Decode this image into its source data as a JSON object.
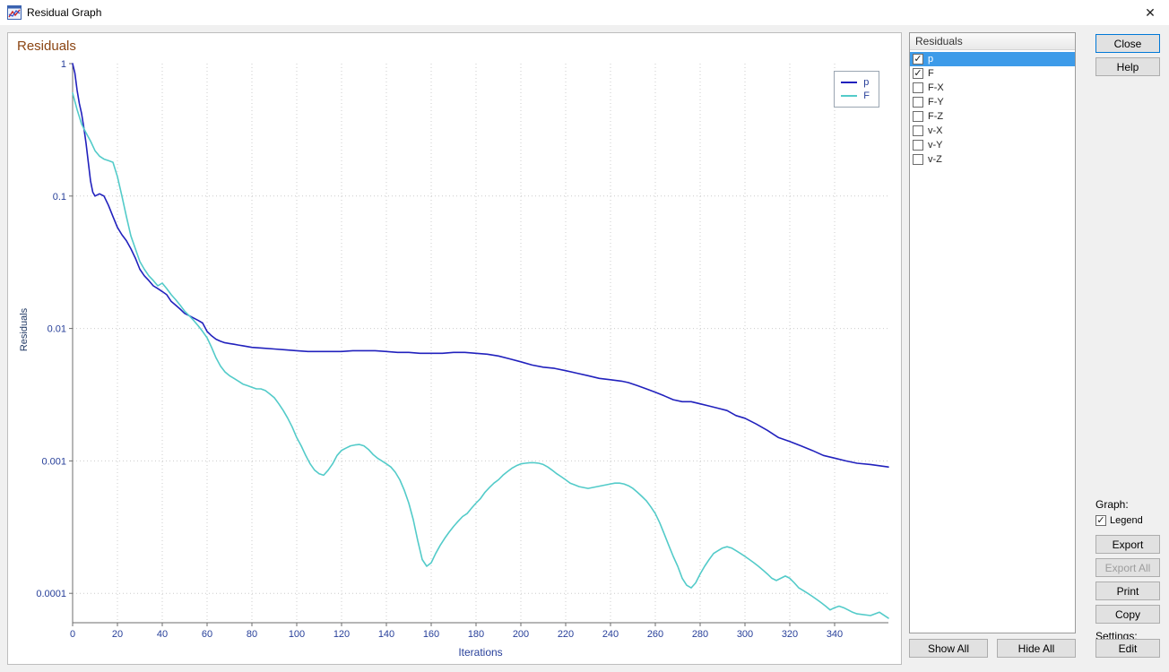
{
  "window": {
    "title": "Residual Graph",
    "close_label": "✕"
  },
  "colors": {
    "series_p": "#2121bd",
    "series_f": "#53cbc9",
    "selection": "#3d9be9",
    "plot_title": "#8b4513",
    "axis_text": "#28409a",
    "default_button_border": "#0078d7"
  },
  "chart_data": {
    "type": "line",
    "title": "Residuals",
    "xlabel": "Iterations",
    "ylabel": "Residuals",
    "x_range": [
      0,
      364
    ],
    "y_range": [
      6e-05,
      1
    ],
    "y_scale": "log",
    "grid": true,
    "legend_position": "top-right",
    "x_ticks": [
      0,
      20,
      40,
      60,
      80,
      100,
      120,
      140,
      160,
      180,
      200,
      220,
      240,
      260,
      280,
      300,
      320,
      340
    ],
    "y_ticks": [
      1,
      0.1,
      0.01,
      0.001,
      0.0001
    ],
    "y_tick_labels": [
      "1",
      "0.1",
      "0.01",
      "0.001",
      "0.0001"
    ],
    "series": [
      {
        "name": "p",
        "color": "#2121bd",
        "points": [
          [
            0,
            1
          ],
          [
            1,
            0.85
          ],
          [
            2,
            0.63
          ],
          [
            3,
            0.5
          ],
          [
            4,
            0.42
          ],
          [
            5,
            0.33
          ],
          [
            6,
            0.25
          ],
          [
            7,
            0.18
          ],
          [
            8,
            0.13
          ],
          [
            9,
            0.107
          ],
          [
            10,
            0.1
          ],
          [
            12,
            0.104
          ],
          [
            14,
            0.1
          ],
          [
            16,
            0.085
          ],
          [
            18,
            0.07
          ],
          [
            20,
            0.058
          ],
          [
            22,
            0.051
          ],
          [
            24,
            0.046
          ],
          [
            26,
            0.04
          ],
          [
            28,
            0.034
          ],
          [
            30,
            0.028
          ],
          [
            32,
            0.025
          ],
          [
            34,
            0.023
          ],
          [
            36,
            0.021
          ],
          [
            38,
            0.02
          ],
          [
            40,
            0.019
          ],
          [
            42,
            0.018
          ],
          [
            44,
            0.016
          ],
          [
            46,
            0.015
          ],
          [
            48,
            0.014
          ],
          [
            50,
            0.013
          ],
          [
            52,
            0.0125
          ],
          [
            54,
            0.012
          ],
          [
            56,
            0.0115
          ],
          [
            58,
            0.011
          ],
          [
            60,
            0.0095
          ],
          [
            62,
            0.0088
          ],
          [
            64,
            0.0083
          ],
          [
            66,
            0.008
          ],
          [
            68,
            0.0078
          ],
          [
            70,
            0.0077
          ],
          [
            72,
            0.0076
          ],
          [
            74,
            0.0075
          ],
          [
            76,
            0.0074
          ],
          [
            78,
            0.0073
          ],
          [
            80,
            0.0072
          ],
          [
            85,
            0.0071
          ],
          [
            90,
            0.007
          ],
          [
            95,
            0.0069
          ],
          [
            100,
            0.0068
          ],
          [
            105,
            0.0067
          ],
          [
            110,
            0.0067
          ],
          [
            115,
            0.0067
          ],
          [
            120,
            0.0067
          ],
          [
            125,
            0.0068
          ],
          [
            130,
            0.0068
          ],
          [
            135,
            0.0068
          ],
          [
            140,
            0.0067
          ],
          [
            145,
            0.0066
          ],
          [
            150,
            0.0066
          ],
          [
            155,
            0.0065
          ],
          [
            160,
            0.0065
          ],
          [
            165,
            0.0065
          ],
          [
            170,
            0.0066
          ],
          [
            175,
            0.0066
          ],
          [
            180,
            0.0065
          ],
          [
            185,
            0.0064
          ],
          [
            190,
            0.0062
          ],
          [
            195,
            0.0059
          ],
          [
            200,
            0.0056
          ],
          [
            205,
            0.0053
          ],
          [
            210,
            0.0051
          ],
          [
            215,
            0.005
          ],
          [
            220,
            0.0048
          ],
          [
            225,
            0.0046
          ],
          [
            230,
            0.0044
          ],
          [
            235,
            0.0042
          ],
          [
            240,
            0.0041
          ],
          [
            245,
            0.004
          ],
          [
            248,
            0.0039
          ],
          [
            252,
            0.0037
          ],
          [
            256,
            0.0035
          ],
          [
            260,
            0.0033
          ],
          [
            264,
            0.0031
          ],
          [
            268,
            0.0029
          ],
          [
            272,
            0.0028
          ],
          [
            276,
            0.0028
          ],
          [
            280,
            0.0027
          ],
          [
            284,
            0.0026
          ],
          [
            288,
            0.0025
          ],
          [
            292,
            0.0024
          ],
          [
            296,
            0.0022
          ],
          [
            300,
            0.0021
          ],
          [
            305,
            0.0019
          ],
          [
            310,
            0.0017
          ],
          [
            315,
            0.0015
          ],
          [
            320,
            0.0014
          ],
          [
            325,
            0.0013
          ],
          [
            330,
            0.0012
          ],
          [
            335,
            0.0011
          ],
          [
            340,
            0.00105
          ],
          [
            345,
            0.001
          ],
          [
            350,
            0.00096
          ],
          [
            356,
            0.00094
          ],
          [
            364,
            0.0009
          ]
        ]
      },
      {
        "name": "F",
        "color": "#53cbc9",
        "points": [
          [
            0,
            0.6
          ],
          [
            2,
            0.45
          ],
          [
            4,
            0.35
          ],
          [
            6,
            0.3
          ],
          [
            8,
            0.26
          ],
          [
            10,
            0.22
          ],
          [
            12,
            0.2
          ],
          [
            14,
            0.19
          ],
          [
            16,
            0.185
          ],
          [
            18,
            0.18
          ],
          [
            20,
            0.14
          ],
          [
            22,
            0.1
          ],
          [
            24,
            0.07
          ],
          [
            26,
            0.05
          ],
          [
            28,
            0.04
          ],
          [
            30,
            0.032
          ],
          [
            32,
            0.028
          ],
          [
            34,
            0.025
          ],
          [
            36,
            0.023
          ],
          [
            38,
            0.021
          ],
          [
            40,
            0.022
          ],
          [
            42,
            0.02
          ],
          [
            44,
            0.018
          ],
          [
            46,
            0.0165
          ],
          [
            48,
            0.015
          ],
          [
            50,
            0.0135
          ],
          [
            52,
            0.0125
          ],
          [
            54,
            0.0115
          ],
          [
            56,
            0.0105
          ],
          [
            58,
            0.0095
          ],
          [
            60,
            0.0085
          ],
          [
            62,
            0.0072
          ],
          [
            64,
            0.006
          ],
          [
            66,
            0.0052
          ],
          [
            68,
            0.0047
          ],
          [
            70,
            0.0044
          ],
          [
            72,
            0.0042
          ],
          [
            74,
            0.004
          ],
          [
            76,
            0.0038
          ],
          [
            78,
            0.0037
          ],
          [
            80,
            0.0036
          ],
          [
            82,
            0.0035
          ],
          [
            84,
            0.0035
          ],
          [
            86,
            0.0034
          ],
          [
            88,
            0.0032
          ],
          [
            90,
            0.003
          ],
          [
            92,
            0.0027
          ],
          [
            94,
            0.0024
          ],
          [
            96,
            0.0021
          ],
          [
            98,
            0.0018
          ],
          [
            100,
            0.0015
          ],
          [
            102,
            0.0013
          ],
          [
            104,
            0.0011
          ],
          [
            106,
            0.00095
          ],
          [
            108,
            0.00085
          ],
          [
            110,
            0.0008
          ],
          [
            112,
            0.00078
          ],
          [
            114,
            0.00085
          ],
          [
            116,
            0.00095
          ],
          [
            118,
            0.0011
          ],
          [
            120,
            0.0012
          ],
          [
            122,
            0.00125
          ],
          [
            124,
            0.0013
          ],
          [
            126,
            0.00132
          ],
          [
            128,
            0.00133
          ],
          [
            130,
            0.0013
          ],
          [
            132,
            0.00122
          ],
          [
            134,
            0.00112
          ],
          [
            136,
            0.00105
          ],
          [
            138,
            0.001
          ],
          [
            140,
            0.00095
          ],
          [
            142,
            0.0009
          ],
          [
            144,
            0.00082
          ],
          [
            146,
            0.00072
          ],
          [
            148,
            0.0006
          ],
          [
            150,
            0.00048
          ],
          [
            152,
            0.00036
          ],
          [
            154,
            0.00025
          ],
          [
            156,
            0.00018
          ],
          [
            158,
            0.00016
          ],
          [
            160,
            0.00017
          ],
          [
            162,
            0.0002
          ],
          [
            164,
            0.00023
          ],
          [
            166,
            0.00026
          ],
          [
            168,
            0.00029
          ],
          [
            170,
            0.00032
          ],
          [
            172,
            0.00035
          ],
          [
            174,
            0.00038
          ],
          [
            176,
            0.0004
          ],
          [
            178,
            0.00044
          ],
          [
            180,
            0.00048
          ],
          [
            182,
            0.00052
          ],
          [
            184,
            0.00058
          ],
          [
            186,
            0.00063
          ],
          [
            188,
            0.00068
          ],
          [
            190,
            0.00072
          ],
          [
            192,
            0.00078
          ],
          [
            194,
            0.00083
          ],
          [
            196,
            0.00088
          ],
          [
            198,
            0.00092
          ],
          [
            200,
            0.00095
          ],
          [
            202,
            0.00096
          ],
          [
            204,
            0.00097
          ],
          [
            206,
            0.00097
          ],
          [
            208,
            0.00096
          ],
          [
            210,
            0.00094
          ],
          [
            212,
            0.0009
          ],
          [
            214,
            0.00085
          ],
          [
            216,
            0.0008
          ],
          [
            218,
            0.00076
          ],
          [
            220,
            0.00072
          ],
          [
            222,
            0.00068
          ],
          [
            224,
            0.00066
          ],
          [
            226,
            0.00064
          ],
          [
            228,
            0.00063
          ],
          [
            230,
            0.00062
          ],
          [
            232,
            0.00063
          ],
          [
            234,
            0.00064
          ],
          [
            236,
            0.00065
          ],
          [
            238,
            0.00066
          ],
          [
            240,
            0.00067
          ],
          [
            242,
            0.00068
          ],
          [
            244,
            0.00068
          ],
          [
            246,
            0.00067
          ],
          [
            248,
            0.00065
          ],
          [
            250,
            0.00062
          ],
          [
            252,
            0.00058
          ],
          [
            254,
            0.00054
          ],
          [
            256,
            0.0005
          ],
          [
            258,
            0.00045
          ],
          [
            260,
            0.0004
          ],
          [
            262,
            0.00034
          ],
          [
            264,
            0.00028
          ],
          [
            266,
            0.00023
          ],
          [
            268,
            0.00019
          ],
          [
            270,
            0.00016
          ],
          [
            272,
            0.00013
          ],
          [
            274,
            0.000115
          ],
          [
            276,
            0.00011
          ],
          [
            278,
            0.00012
          ],
          [
            280,
            0.00014
          ],
          [
            282,
            0.00016
          ],
          [
            284,
            0.00018
          ],
          [
            286,
            0.0002
          ],
          [
            288,
            0.00021
          ],
          [
            290,
            0.00022
          ],
          [
            292,
            0.000225
          ],
          [
            294,
            0.00022
          ],
          [
            296,
            0.00021
          ],
          [
            298,
            0.0002
          ],
          [
            300,
            0.00019
          ],
          [
            302,
            0.00018
          ],
          [
            304,
            0.00017
          ],
          [
            306,
            0.00016
          ],
          [
            308,
            0.00015
          ],
          [
            310,
            0.00014
          ],
          [
            312,
            0.00013
          ],
          [
            314,
            0.000125
          ],
          [
            316,
            0.00013
          ],
          [
            318,
            0.000135
          ],
          [
            320,
            0.00013
          ],
          [
            322,
            0.00012
          ],
          [
            324,
            0.00011
          ],
          [
            326,
            0.000105
          ],
          [
            328,
            0.0001
          ],
          [
            330,
            9.5e-05
          ],
          [
            332,
            9e-05
          ],
          [
            334,
            8.5e-05
          ],
          [
            336,
            8e-05
          ],
          [
            338,
            7.5e-05
          ],
          [
            340,
            7.8e-05
          ],
          [
            342,
            8e-05
          ],
          [
            344,
            7.8e-05
          ],
          [
            346,
            7.5e-05
          ],
          [
            348,
            7.2e-05
          ],
          [
            350,
            7e-05
          ],
          [
            356,
            6.8e-05
          ],
          [
            360,
            7.2e-05
          ],
          [
            364,
            6.5e-05
          ]
        ]
      }
    ]
  },
  "residuals_panel": {
    "header": "Residuals",
    "items": [
      {
        "label": "p",
        "checked": true,
        "selected": true
      },
      {
        "label": "F",
        "checked": true,
        "selected": false
      },
      {
        "label": "F-X",
        "checked": false,
        "selected": false
      },
      {
        "label": "F-Y",
        "checked": false,
        "selected": false
      },
      {
        "label": "F-Z",
        "checked": false,
        "selected": false
      },
      {
        "label": "v-X",
        "checked": false,
        "selected": false
      },
      {
        "label": "v-Y",
        "checked": false,
        "selected": false
      },
      {
        "label": "v-Z",
        "checked": false,
        "selected": false
      }
    ],
    "show_all_label": "Show All",
    "hide_all_label": "Hide All"
  },
  "sidebar": {
    "close_label": "Close",
    "help_label": "Help",
    "graph_label": "Graph:",
    "legend_checkbox_label": "Legend",
    "legend_checked": true,
    "export_label": "Export",
    "export_all_label": "Export All",
    "export_all_enabled": false,
    "print_label": "Print",
    "copy_label": "Copy",
    "settings_label": "Settings:",
    "edit_label": "Edit"
  }
}
